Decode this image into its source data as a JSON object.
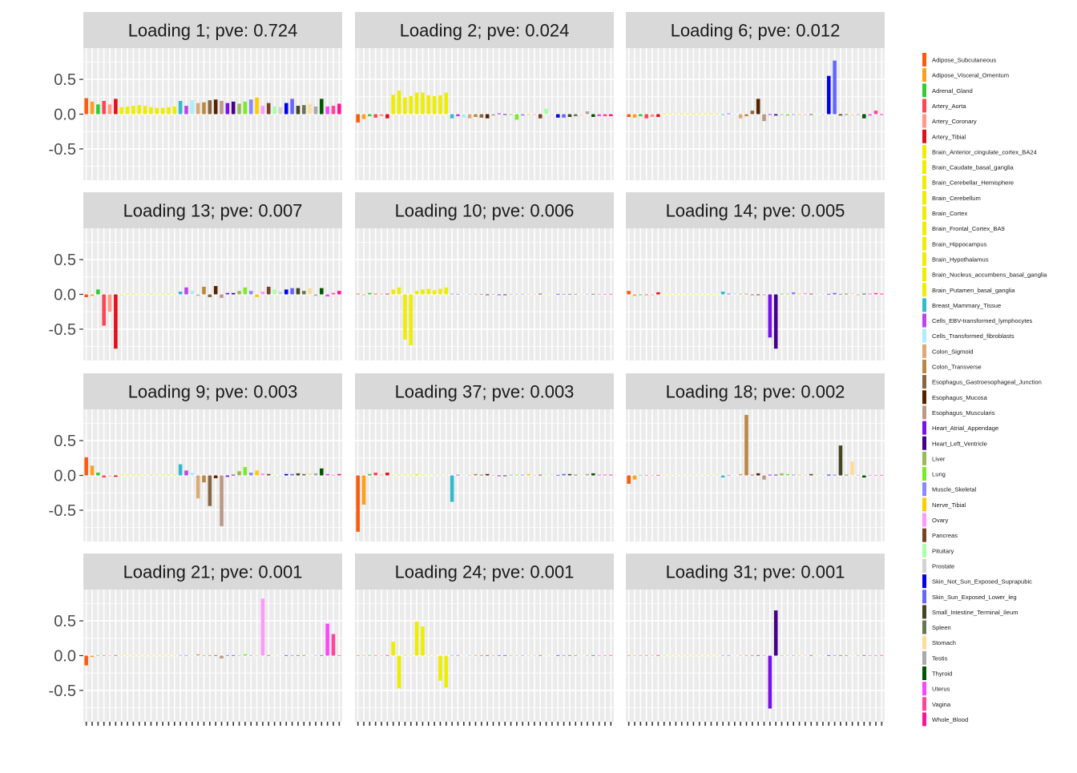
{
  "chart_data": {
    "type": "bar",
    "facet_layout": "4 rows x 3 columns",
    "ylim": [
      -0.95,
      0.95
    ],
    "y_ticks": [
      0.5,
      0.0,
      -0.5
    ],
    "y_tick_labels": [
      "0.5",
      "0.0",
      "-0.5"
    ],
    "grid": true,
    "legend_position": "right",
    "categories": [
      "Adipose_Subcutaneous",
      "Adipose_Visceral_Omentum",
      "Adrenal_Gland",
      "Artery_Aorta",
      "Artery_Coronary",
      "Artery_Tibial",
      "Brain_Anterior_cingulate_cortex_BA24",
      "Brain_Caudate_basal_ganglia",
      "Brain_Cerebellar_Hemisphere",
      "Brain_Cerebellum",
      "Brain_Cortex",
      "Brain_Frontal_Cortex_BA9",
      "Brain_Hippocampus",
      "Brain_Hypothalamus",
      "Brain_Nucleus_accumbens_basal_ganglia",
      "Brain_Putamen_basal_ganglia",
      "Breast_Mammary_Tissue",
      "Cells_EBV-transformed_lymphocytes",
      "Cells_Transformed_fibroblasts",
      "Colon_Sigmoid",
      "Colon_Transverse",
      "Esophagus_Gastroesophageal_Junction",
      "Esophagus_Mucosa",
      "Esophagus_Muscularis",
      "Heart_Atrial_Appendage",
      "Heart_Left_Ventricle",
      "Liver",
      "Lung",
      "Muscle_Skeletal",
      "Nerve_Tibial",
      "Ovary",
      "Pancreas",
      "Pituitary",
      "Prostate",
      "Skin_Not_Sun_Exposed_Suprapubic",
      "Skin_Sun_Exposed_Lower_leg",
      "Small_Intestine_Terminal_Ileum",
      "Spleen",
      "Stomach",
      "Testis",
      "Thyroid",
      "Uterus",
      "Vagina",
      "Whole_Blood"
    ],
    "colors": [
      "#ff5a0a",
      "#ff9f1c",
      "#33cc33",
      "#ff4455",
      "#ff9988",
      "#e0101a",
      "#eeee00",
      "#eeee00",
      "#eeee00",
      "#eeee00",
      "#eeee00",
      "#eeee00",
      "#eeee00",
      "#eeee00",
      "#eeee00",
      "#eeee00",
      "#33bbcc",
      "#bb44ee",
      "#aaeeff",
      "#ddaa77",
      "#bb8844",
      "#886644",
      "#552200",
      "#bb9988",
      "#7711ee",
      "#440088",
      "#99bb55",
      "#77ee22",
      "#8888ff",
      "#ffcc00",
      "#ff99ff",
      "#774422",
      "#aaffaa",
      "#d3d3d3",
      "#0000ee",
      "#6666ff",
      "#444422",
      "#667755",
      "#ffdd99",
      "#aaaaaa",
      "#005500",
      "#ff44ff",
      "#ff4499",
      "#ff1199"
    ],
    "panels": [
      {
        "label": "Loading 1; pve: 0.724",
        "values": [
          0.23,
          0.18,
          0.14,
          0.19,
          0.14,
          0.22,
          0.1,
          0.11,
          0.12,
          0.13,
          0.12,
          0.1,
          0.09,
          0.09,
          0.1,
          0.11,
          0.19,
          0.12,
          0.2,
          0.16,
          0.17,
          0.2,
          0.21,
          0.19,
          0.16,
          0.18,
          0.15,
          0.18,
          0.21,
          0.24,
          0.12,
          0.16,
          0.11,
          0.1,
          0.16,
          0.22,
          0.12,
          0.13,
          0.15,
          0.11,
          0.22,
          0.11,
          0.12,
          0.15
        ]
      },
      {
        "label": "Loading 2; pve: 0.024",
        "values": [
          -0.12,
          -0.07,
          -0.03,
          -0.05,
          -0.03,
          -0.06,
          0.28,
          0.34,
          0.24,
          0.26,
          0.31,
          0.31,
          0.27,
          0.26,
          0.27,
          0.31,
          -0.06,
          -0.03,
          -0.05,
          -0.06,
          -0.04,
          -0.05,
          -0.06,
          -0.02,
          0.01,
          -0.01,
          -0.01,
          -0.08,
          -0.02,
          -0.01,
          -0.01,
          -0.06,
          0.08,
          -0.01,
          -0.05,
          -0.05,
          -0.04,
          -0.03,
          -0.02,
          0.04,
          -0.04,
          -0.03,
          -0.03,
          -0.03
        ]
      },
      {
        "label": "Loading 6; pve: 0.012",
        "values": [
          -0.04,
          -0.05,
          -0.03,
          -0.06,
          -0.04,
          -0.04,
          0.01,
          0.01,
          0.01,
          0.01,
          0.01,
          0.01,
          0.01,
          0.01,
          0.01,
          0.01,
          -0.01,
          0.01,
          -0.01,
          -0.06,
          -0.03,
          0.05,
          0.22,
          -0.1,
          -0.01,
          -0.02,
          -0.01,
          -0.02,
          -0.01,
          -0.01,
          -0.01,
          -0.01,
          0.0,
          -0.01,
          0.55,
          0.77,
          -0.02,
          -0.01,
          -0.02,
          -0.01,
          -0.06,
          -0.02,
          0.05,
          -0.01
        ]
      },
      {
        "label": "Loading 13; pve: 0.007",
        "values": [
          -0.04,
          -0.02,
          0.07,
          -0.45,
          -0.25,
          -0.78,
          -0.01,
          0.01,
          0.01,
          0.0,
          0.0,
          0.01,
          0.0,
          0.01,
          0.01,
          0.0,
          0.04,
          0.1,
          0.05,
          -0.02,
          0.11,
          -0.04,
          0.12,
          -0.05,
          0.02,
          0.02,
          0.05,
          0.1,
          0.05,
          -0.04,
          0.04,
          0.11,
          0.07,
          0.04,
          0.07,
          0.09,
          0.09,
          0.05,
          0.09,
          -0.02,
          0.09,
          -0.03,
          0.02,
          0.05
        ]
      },
      {
        "label": "Loading 10; pve: 0.006",
        "values": [
          0.01,
          -0.01,
          0.02,
          0.01,
          0.01,
          0.01,
          0.07,
          0.1,
          -0.65,
          -0.73,
          0.05,
          0.07,
          0.08,
          0.06,
          0.08,
          0.1,
          0.01,
          0.0,
          0.01,
          0.0,
          0.0,
          0.0,
          -0.01,
          0.0,
          -0.01,
          -0.01,
          0.0,
          0.0,
          0.0,
          0.0,
          0.0,
          0.01,
          0.0,
          0.0,
          0.0,
          0.0,
          0.0,
          0.0,
          0.0,
          0.0,
          0.0,
          0.0,
          0.0,
          0.0
        ]
      },
      {
        "label": "Loading 14; pve: 0.005",
        "values": [
          0.05,
          -0.02,
          -0.01,
          -0.01,
          -0.01,
          0.03,
          0.0,
          0.0,
          0.0,
          0.0,
          0.0,
          0.0,
          0.0,
          0.0,
          0.0,
          0.0,
          0.04,
          0.01,
          0.02,
          0.01,
          0.01,
          -0.01,
          -0.01,
          -0.01,
          -0.62,
          -0.78,
          0.01,
          0.01,
          0.03,
          0.01,
          0.02,
          0.01,
          0.01,
          0.0,
          0.0,
          0.02,
          0.0,
          0.01,
          0.02,
          -0.01,
          0.01,
          0.01,
          0.02,
          0.01
        ]
      },
      {
        "label": "Loading 9; pve: 0.003",
        "values": [
          0.26,
          0.14,
          0.04,
          -0.03,
          -0.01,
          -0.02,
          0.01,
          0.01,
          0.01,
          0.01,
          0.0,
          0.01,
          0.01,
          0.01,
          0.01,
          0.01,
          0.16,
          0.07,
          0.04,
          -0.33,
          -0.1,
          -0.44,
          -0.04,
          -0.73,
          -0.02,
          0.01,
          0.06,
          0.12,
          0.04,
          0.07,
          0.03,
          0.02,
          -0.01,
          -0.01,
          0.02,
          0.02,
          0.03,
          0.02,
          0.03,
          0.03,
          0.1,
          0.02,
          0.0,
          0.02
        ]
      },
      {
        "label": "Loading 37; pve: 0.003",
        "values": [
          -0.81,
          -0.42,
          0.02,
          0.04,
          0.01,
          0.04,
          0.0,
          0.01,
          0.01,
          0.0,
          0.02,
          0.0,
          0.0,
          0.0,
          0.0,
          0.0,
          -0.38,
          0.01,
          0.01,
          0.0,
          0.02,
          0.01,
          0.02,
          0.0,
          -0.01,
          -0.01,
          0.01,
          0.01,
          0.01,
          0.02,
          0.0,
          0.01,
          0.01,
          0.01,
          0.0,
          0.02,
          0.02,
          0.01,
          0.01,
          0.02,
          0.03,
          0.01,
          0.01,
          0.01
        ]
      },
      {
        "label": "Loading 18; pve: 0.002",
        "values": [
          -0.12,
          -0.06,
          0.0,
          0.0,
          0.0,
          0.0,
          0.0,
          0.0,
          0.0,
          0.0,
          0.0,
          0.0,
          0.0,
          0.0,
          0.0,
          0.01,
          -0.03,
          0.0,
          0.0,
          0.02,
          0.87,
          0.01,
          0.03,
          -0.06,
          0.01,
          0.01,
          0.03,
          0.02,
          0.01,
          0.01,
          0.0,
          0.02,
          0.01,
          0.0,
          0.01,
          0.01,
          0.43,
          0.01,
          0.2,
          0.0,
          -0.03,
          0.0,
          0.0,
          0.0
        ]
      },
      {
        "label": "Loading 21; pve: 0.001",
        "values": [
          -0.14,
          -0.02,
          0.0,
          0.0,
          0.0,
          0.0,
          0.0,
          0.0,
          0.0,
          0.0,
          0.0,
          0.0,
          0.0,
          0.0,
          0.0,
          0.0,
          0.0,
          0.0,
          0.0,
          0.02,
          0.0,
          0.0,
          0.0,
          -0.04,
          0.0,
          0.0,
          0.0,
          0.02,
          0.0,
          0.0,
          0.82,
          0.0,
          0.0,
          0.0,
          0.0,
          0.0,
          0.0,
          0.0,
          0.0,
          0.0,
          0.0,
          0.46,
          0.31,
          0.0
        ]
      },
      {
        "label": "Loading 24; pve: 0.001",
        "values": [
          0.0,
          0.0,
          0.0,
          0.0,
          0.0,
          0.0,
          0.2,
          -0.47,
          0.01,
          0.0,
          0.49,
          0.42,
          0.0,
          0.0,
          -0.36,
          -0.46,
          0.0,
          0.0,
          0.0,
          0.0,
          0.0,
          0.0,
          0.0,
          0.0,
          0.0,
          0.0,
          0.0,
          0.0,
          0.0,
          0.0,
          0.0,
          0.0,
          0.0,
          0.0,
          0.0,
          0.0,
          0.0,
          0.0,
          0.0,
          0.0,
          0.0,
          0.0,
          0.0,
          0.0
        ]
      },
      {
        "label": "Loading 31; pve: 0.001",
        "values": [
          0.0,
          0.0,
          0.0,
          0.0,
          0.0,
          0.0,
          0.0,
          0.0,
          0.0,
          0.0,
          0.0,
          0.0,
          0.0,
          0.0,
          0.0,
          0.0,
          0.0,
          0.0,
          0.0,
          0.0,
          0.0,
          0.0,
          0.0,
          0.0,
          -0.76,
          0.65,
          0.0,
          0.0,
          0.0,
          0.0,
          0.0,
          0.0,
          0.0,
          0.0,
          0.0,
          0.0,
          0.0,
          0.0,
          0.0,
          0.0,
          0.0,
          0.0,
          0.0,
          0.0
        ]
      }
    ]
  }
}
